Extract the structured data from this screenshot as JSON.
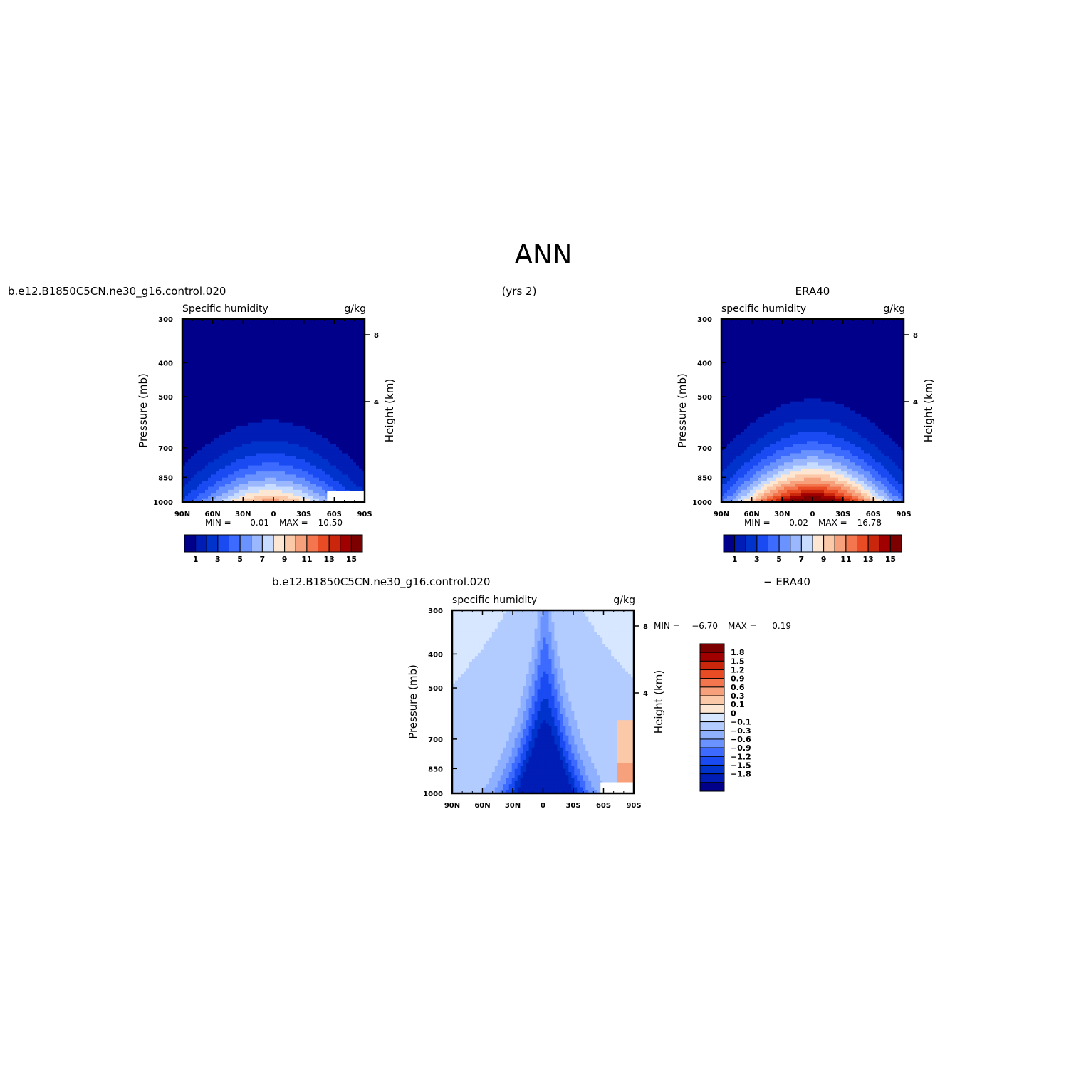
{
  "title": "ANN",
  "labels": {
    "case_left": "b.e12.B1850C5CN.ne30_g16.control.020",
    "years": "(yrs 2)",
    "obs_right": "ERA40",
    "diff_left": "b.e12.B1850C5CN.ne30_g16.control.020",
    "diff_right": "− ERA40"
  },
  "chart_data": [
    {
      "type": "heatmap",
      "name": "panel-model",
      "title": "Specific humidity",
      "units": "g/kg",
      "xlabel": "",
      "ylabel": "Pressure (mb)",
      "ylabel_right": "Height (km)",
      "x_ticks": [
        "90N",
        "60N",
        "30N",
        "0",
        "30S",
        "60S",
        "90S"
      ],
      "y_ticks": [
        300,
        400,
        500,
        700,
        850,
        1000
      ],
      "y_log": true,
      "height_ticks": [
        8,
        4
      ],
      "min_label": "MIN =",
      "min": "0.01",
      "max_label": "MAX =",
      "max": "10.50",
      "peak": 10.5,
      "peak_lat": 3,
      "tropo_top": 500,
      "masked_region": {
        "lat": [
          -53,
          -90
        ],
        "pressure": [
          930,
          1000
        ]
      },
      "colorbar": {
        "colors": [
          "#00008b",
          "#001db5",
          "#0033cc",
          "#1a4bf2",
          "#3d6bff",
          "#6b93ff",
          "#9bb8ff",
          "#c8dcff",
          "#fde6d2",
          "#fbc8a8",
          "#f6a17c",
          "#f4764e",
          "#e94b25",
          "#c9260b",
          "#a00000",
          "#7d0000"
        ],
        "labels": [
          "1",
          "3",
          "5",
          "7",
          "9",
          "11",
          "13",
          "15"
        ]
      }
    },
    {
      "type": "heatmap",
      "name": "panel-era40",
      "title": "specific humidity",
      "units": "g/kg",
      "xlabel": "",
      "ylabel": "Pressure (mb)",
      "ylabel_right": "Height (km)",
      "x_ticks": [
        "90N",
        "60N",
        "30N",
        "0",
        "30S",
        "60S",
        "90S"
      ],
      "y_ticks": [
        300,
        400,
        500,
        700,
        850,
        1000
      ],
      "y_log": true,
      "height_ticks": [
        8,
        4
      ],
      "min_label": "MIN =",
      "min": "0.02",
      "max_label": "MAX =",
      "max": "16.78",
      "peak": 16.78,
      "peak_lat": 0,
      "tropo_top": 360,
      "masked_region": null,
      "colorbar": {
        "colors": [
          "#00008b",
          "#001db5",
          "#0033cc",
          "#1a4bf2",
          "#3d6bff",
          "#6b93ff",
          "#9bb8ff",
          "#c8dcff",
          "#fde6d2",
          "#fbc8a8",
          "#f6a17c",
          "#f4764e",
          "#e94b25",
          "#c9260b",
          "#a00000",
          "#7d0000"
        ],
        "labels": [
          "1",
          "3",
          "5",
          "7",
          "9",
          "11",
          "13",
          "15"
        ]
      }
    },
    {
      "type": "heatmap",
      "name": "panel-difference",
      "title": "specific humidity",
      "units": "g/kg",
      "xlabel": "",
      "ylabel": "Pressure (mb)",
      "ylabel_right": "Height (km)",
      "x_ticks": [
        "90N",
        "60N",
        "30N",
        "0",
        "30S",
        "60S",
        "90S"
      ],
      "y_ticks": [
        300,
        400,
        500,
        700,
        850,
        1000
      ],
      "y_log": true,
      "height_ticks": [
        8,
        4
      ],
      "min_label": "MIN =",
      "min": "−6.70",
      "max_label": "MAX =",
      "max": "0.19",
      "masked_region": {
        "lat": [
          -57,
          -90
        ],
        "pressure": [
          930,
          1000
        ]
      },
      "colorbar": {
        "colors": [
          "#7d0000",
          "#a00000",
          "#c9260b",
          "#e94b25",
          "#f4764e",
          "#f6a17c",
          "#fbc8a8",
          "#fde6d2",
          "#d6e7ff",
          "#b3ccff",
          "#8fb0ff",
          "#6b93ff",
          "#3d6bff",
          "#1a4bf2",
          "#0033cc",
          "#001db5",
          "#00008b"
        ],
        "labels": [
          "1.8",
          "1.5",
          "1.2",
          "0.9",
          "0.6",
          "0.3",
          "0.1",
          "0",
          "−0.1",
          "−0.3",
          "−0.6",
          "−0.9",
          "−1.2",
          "−1.5",
          "−1.8"
        ]
      }
    }
  ]
}
